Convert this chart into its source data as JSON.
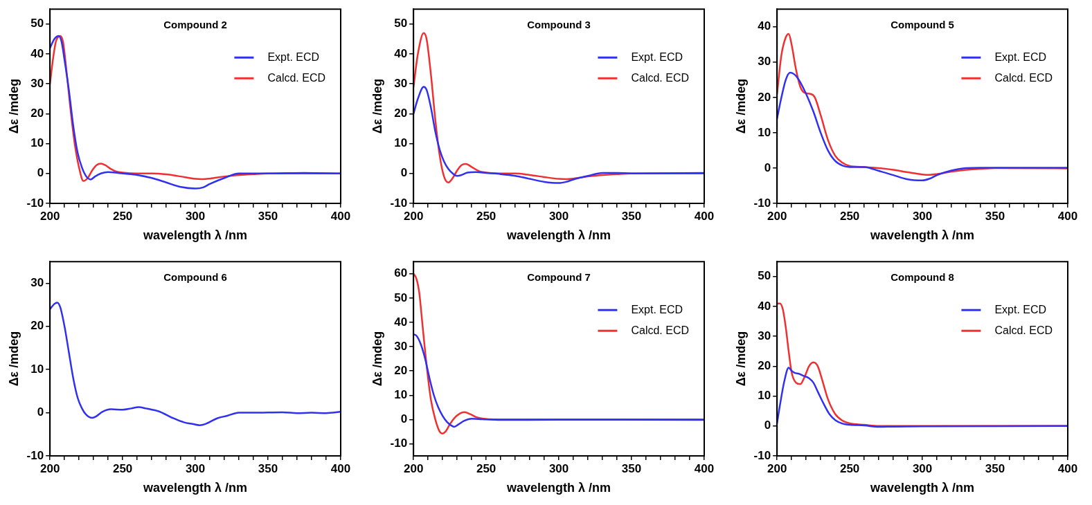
{
  "chart_data": [
    {
      "type": "line",
      "title": "Compound 2",
      "xlabel": "wavelength λ /nm",
      "ylabel": "Δε /mdeg",
      "xlim": [
        200,
        400
      ],
      "xticks": [
        200,
        {
          "value": 210,
          "label": null
        },
        {
          "value": 220,
          "label": null
        },
        {
          "value": 230,
          "label": null
        },
        {
          "value": 240,
          "label": null
        },
        250,
        {
          "value": 260,
          "label": null
        },
        {
          "value": 270,
          "label": null
        },
        {
          "value": 280,
          "label": null
        },
        {
          "value": 290,
          "label": null
        },
        300,
        {
          "value": 310,
          "label": null
        },
        {
          "value": 320,
          "label": null
        },
        {
          "value": 330,
          "label": null
        },
        {
          "value": 340,
          "label": null
        },
        350,
        {
          "value": 360,
          "label": null
        },
        {
          "value": 370,
          "label": null
        },
        {
          "value": 380,
          "label": null
        },
        {
          "value": 390,
          "label": null
        },
        400
      ],
      "ylim": [
        -10,
        55
      ],
      "yticks": [
        -10,
        0,
        10,
        20,
        30,
        40,
        50
      ],
      "legend": "top right",
      "marker": "none",
      "line_style": "solid",
      "series": [
        {
          "name": "Expt. ECD",
          "color": "#3030f0",
          "x": [
            200,
            203,
            206,
            208,
            210,
            213,
            216,
            219,
            222,
            225,
            228,
            231,
            235,
            240,
            245,
            250,
            260,
            270,
            280,
            290,
            300,
            305,
            310,
            320,
            330,
            340,
            350,
            375,
            400
          ],
          "values": [
            42,
            45,
            46,
            44,
            38,
            28,
            16,
            7,
            2,
            -1,
            -2,
            -1,
            0,
            0.5,
            0.3,
            0,
            -0.5,
            -1.5,
            -3,
            -4.5,
            -5,
            -4.7,
            -3.5,
            -1.5,
            0,
            0,
            0,
            0.2,
            0
          ]
        },
        {
          "name": "Calcd. ECD",
          "color": "#f03030",
          "x": [
            200,
            202,
            204,
            207,
            209,
            211,
            214,
            217,
            220,
            223,
            226,
            229,
            232,
            235,
            238,
            242,
            246,
            250,
            260,
            270,
            280,
            290,
            300,
            305,
            310,
            320,
            330,
            340,
            350,
            400
          ],
          "values": [
            30,
            38,
            44,
            46,
            44,
            36,
            22,
            10,
            2,
            -2.5,
            -1.5,
            1,
            2.8,
            3.3,
            2.8,
            1.5,
            0.6,
            0.3,
            0,
            0,
            -0.3,
            -1,
            -1.8,
            -1.9,
            -1.7,
            -1,
            -0.5,
            -0.2,
            0,
            0
          ]
        }
      ]
    },
    {
      "type": "line",
      "title": "Compound 3",
      "xlabel": "wavelength λ /nm",
      "ylabel": "Δε /mdeg",
      "xlim": [
        200,
        400
      ],
      "xticks": [
        200,
        {
          "value": 210,
          "label": null
        },
        {
          "value": 220,
          "label": null
        },
        {
          "value": 230,
          "label": null
        },
        {
          "value": 240,
          "label": null
        },
        250,
        {
          "value": 260,
          "label": null
        },
        {
          "value": 270,
          "label": null
        },
        {
          "value": 280,
          "label": null
        },
        {
          "value": 290,
          "label": null
        },
        300,
        {
          "value": 310,
          "label": null
        },
        {
          "value": 320,
          "label": null
        },
        {
          "value": 330,
          "label": null
        },
        {
          "value": 340,
          "label": null
        },
        350,
        {
          "value": 360,
          "label": null
        },
        {
          "value": 370,
          "label": null
        },
        {
          "value": 380,
          "label": null
        },
        {
          "value": 390,
          "label": null
        },
        400
      ],
      "ylim": [
        -10,
        55
      ],
      "yticks": [
        -10,
        0,
        10,
        20,
        30,
        40,
        50
      ],
      "legend": "top right",
      "marker": "none",
      "line_style": "solid",
      "series": [
        {
          "name": "Expt. ECD",
          "color": "#3030f0",
          "x": [
            200,
            203,
            207,
            209,
            212,
            215,
            218,
            221,
            224,
            227,
            230,
            233,
            237,
            243,
            250,
            260,
            270,
            280,
            290,
            300,
            305,
            310,
            320,
            330,
            340,
            350,
            400
          ],
          "values": [
            20,
            25,
            29,
            28,
            22,
            14,
            8,
            4,
            1.5,
            0,
            -0.8,
            -0.5,
            0.3,
            0.5,
            0.2,
            -0.2,
            -0.8,
            -1.8,
            -2.8,
            -3.2,
            -2.8,
            -2,
            -0.8,
            0.2,
            0.2,
            0,
            0.2
          ]
        },
        {
          "name": "Calcd. ECD",
          "color": "#f03030",
          "x": [
            200,
            203,
            207,
            209,
            212,
            215,
            218,
            221,
            224,
            227,
            230,
            233,
            236,
            240,
            245,
            250,
            260,
            270,
            280,
            290,
            300,
            305,
            310,
            320,
            330,
            340,
            350,
            400
          ],
          "values": [
            29,
            40,
            47,
            45,
            33,
            18,
            6,
            -1,
            -3,
            -1.5,
            1,
            2.8,
            3.2,
            2.2,
            0.8,
            0.3,
            0,
            0,
            -0.5,
            -1.2,
            -1.8,
            -1.9,
            -1.7,
            -1,
            -0.5,
            -0.2,
            0,
            0
          ]
        }
      ]
    },
    {
      "type": "line",
      "title": "Compound 5",
      "xlabel": "wavelength λ /nm",
      "ylabel": "Δε /mdeg",
      "xlim": [
        200,
        400
      ],
      "xticks": [
        200,
        {
          "value": 210,
          "label": null
        },
        {
          "value": 220,
          "label": null
        },
        {
          "value": 230,
          "label": null
        },
        {
          "value": 240,
          "label": null
        },
        250,
        {
          "value": 260,
          "label": null
        },
        {
          "value": 270,
          "label": null
        },
        {
          "value": 280,
          "label": null
        },
        {
          "value": 290,
          "label": null
        },
        300,
        {
          "value": 310,
          "label": null
        },
        {
          "value": 320,
          "label": null
        },
        {
          "value": 330,
          "label": null
        },
        {
          "value": 340,
          "label": null
        },
        350,
        {
          "value": 360,
          "label": null
        },
        {
          "value": 370,
          "label": null
        },
        {
          "value": 380,
          "label": null
        },
        {
          "value": 390,
          "label": null
        },
        400
      ],
      "ylim": [
        -10,
        45
      ],
      "yticks": [
        -10,
        0,
        10,
        20,
        30,
        40
      ],
      "legend": "top right",
      "marker": "none",
      "line_style": "solid",
      "series": [
        {
          "name": "Expt. ECD",
          "color": "#3030f0",
          "x": [
            200,
            203,
            206,
            209,
            212,
            215,
            220,
            225,
            230,
            235,
            240,
            245,
            250,
            260,
            270,
            280,
            290,
            300,
            305,
            310,
            320,
            330,
            340,
            400
          ],
          "values": [
            14,
            20,
            25,
            27,
            26.5,
            25,
            21,
            16,
            10,
            5,
            2,
            0.7,
            0.3,
            0.3,
            -0.8,
            -2,
            -3.2,
            -3.5,
            -3,
            -2,
            -0.7,
            0,
            0.1,
            0.1
          ]
        },
        {
          "name": "Calcd. ECD",
          "color": "#f03030",
          "x": [
            200,
            203,
            206,
            208,
            210,
            213,
            216,
            219,
            223,
            226,
            230,
            235,
            240,
            245,
            250,
            260,
            270,
            280,
            290,
            300,
            305,
            310,
            320,
            330,
            340,
            350,
            400
          ],
          "values": [
            21,
            32,
            37,
            38,
            35,
            28,
            23,
            21.3,
            21,
            20,
            15,
            8,
            3.5,
            1.5,
            0.6,
            0.3,
            0,
            -0.5,
            -1.2,
            -1.8,
            -1.9,
            -1.7,
            -1,
            -0.5,
            -0.2,
            0,
            -0.1
          ]
        }
      ]
    },
    {
      "type": "line",
      "title": "Compound 6",
      "xlabel": "wavelength λ /nm",
      "ylabel": "Δε /mdeg",
      "xlim": [
        200,
        400
      ],
      "xticks": [
        200,
        {
          "value": 210,
          "label": null
        },
        {
          "value": 220,
          "label": null
        },
        {
          "value": 230,
          "label": null
        },
        {
          "value": 240,
          "label": null
        },
        250,
        {
          "value": 260,
          "label": null
        },
        {
          "value": 270,
          "label": null
        },
        {
          "value": 280,
          "label": null
        },
        {
          "value": 290,
          "label": null
        },
        300,
        {
          "value": 310,
          "label": null
        },
        {
          "value": 320,
          "label": null
        },
        {
          "value": 330,
          "label": null
        },
        {
          "value": 340,
          "label": null
        },
        350,
        {
          "value": 360,
          "label": null
        },
        {
          "value": 370,
          "label": null
        },
        {
          "value": 380,
          "label": null
        },
        {
          "value": 390,
          "label": null
        },
        400
      ],
      "ylim": [
        -10,
        35
      ],
      "yticks": [
        -10,
        0,
        10,
        20,
        30
      ],
      "marker": "none",
      "line_style": "solid",
      "series": [
        {
          "color": "#3030f0",
          "x": [
            200,
            203,
            205,
            207,
            210,
            213,
            216,
            219,
            222,
            225,
            229,
            232,
            236,
            242,
            250,
            256,
            261,
            266,
            275,
            285,
            292,
            298,
            303,
            307,
            315,
            322,
            330,
            340,
            360,
            370,
            380,
            390,
            400
          ],
          "values": [
            24,
            25.2,
            25.5,
            24.5,
            20,
            14,
            8,
            3.5,
            1,
            -0.5,
            -1.2,
            -0.8,
            0.2,
            0.8,
            0.7,
            1,
            1.3,
            1,
            0.3,
            -1.3,
            -2.2,
            -2.6,
            -2.9,
            -2.6,
            -1.3,
            -0.7,
            0,
            0,
            0.1,
            -0.1,
            0,
            -0.1,
            0.2
          ]
        }
      ]
    },
    {
      "type": "line",
      "title": "Compound 7",
      "xlabel": "wavelength λ /nm",
      "ylabel": "Δε /mdeg",
      "xlim": [
        200,
        400
      ],
      "xticks": [
        200,
        {
          "value": 210,
          "label": null
        },
        {
          "value": 220,
          "label": null
        },
        {
          "value": 230,
          "label": null
        },
        {
          "value": 240,
          "label": null
        },
        250,
        {
          "value": 260,
          "label": null
        },
        {
          "value": 270,
          "label": null
        },
        {
          "value": 280,
          "label": null
        },
        {
          "value": 290,
          "label": null
        },
        300,
        {
          "value": 310,
          "label": null
        },
        {
          "value": 320,
          "label": null
        },
        {
          "value": 330,
          "label": null
        },
        {
          "value": 340,
          "label": null
        },
        350,
        {
          "value": 360,
          "label": null
        },
        {
          "value": 370,
          "label": null
        },
        {
          "value": 380,
          "label": null
        },
        {
          "value": 390,
          "label": null
        },
        400
      ],
      "ylim": [
        -15,
        65
      ],
      "yticks": [
        -10,
        0,
        10,
        20,
        30,
        40,
        50,
        60
      ],
      "legend": "top right",
      "marker": "none",
      "line_style": "solid",
      "series": [
        {
          "name": "Expt. ECD",
          "color": "#3030f0",
          "x": [
            200,
            202,
            205,
            208,
            211,
            214,
            217,
            220,
            223,
            226,
            228,
            231,
            235,
            240,
            245,
            250,
            260,
            300,
            400
          ],
          "values": [
            35,
            34.5,
            31,
            25,
            17,
            10,
            5,
            1.5,
            -1,
            -2.5,
            -3,
            -2,
            -0.5,
            0.3,
            0.2,
            0,
            -0.2,
            -0.1,
            -0.2
          ]
        },
        {
          "name": "Calcd. ECD",
          "color": "#f03030",
          "x": [
            200,
            202,
            204,
            206,
            208,
            210,
            212,
            215,
            218,
            220,
            222,
            225,
            228,
            232,
            235,
            239,
            243,
            248,
            255,
            400
          ],
          "values": [
            60,
            58,
            52,
            40,
            28,
            17,
            8,
            0,
            -5,
            -5.8,
            -5,
            -2,
            0.5,
            2.5,
            3,
            2.2,
            1,
            0.3,
            0,
            0
          ]
        }
      ]
    },
    {
      "type": "line",
      "title": "Compound 8",
      "xlabel": "wavelength λ /nm",
      "ylabel": "Δε /mdeg",
      "xlim": [
        200,
        400
      ],
      "xticks": [
        200,
        {
          "value": 210,
          "label": null
        },
        {
          "value": 220,
          "label": null
        },
        {
          "value": 230,
          "label": null
        },
        {
          "value": 240,
          "label": null
        },
        250,
        {
          "value": 260,
          "label": null
        },
        {
          "value": 270,
          "label": null
        },
        {
          "value": 280,
          "label": null
        },
        {
          "value": 290,
          "label": null
        },
        300,
        {
          "value": 310,
          "label": null
        },
        {
          "value": 320,
          "label": null
        },
        {
          "value": 330,
          "label": null
        },
        {
          "value": 340,
          "label": null
        },
        350,
        {
          "value": 360,
          "label": null
        },
        {
          "value": 370,
          "label": null
        },
        {
          "value": 380,
          "label": null
        },
        {
          "value": 390,
          "label": null
        },
        400
      ],
      "ylim": [
        -10,
        55
      ],
      "yticks": [
        -10,
        0,
        10,
        20,
        30,
        40,
        50
      ],
      "legend": "top right",
      "marker": "none",
      "line_style": "solid",
      "series": [
        {
          "name": "Expt. ECD",
          "color": "#3030f0",
          "x": [
            200,
            202,
            205,
            208,
            210,
            212,
            215,
            218,
            222,
            225,
            228,
            232,
            236,
            240,
            245,
            250,
            260,
            270,
            280,
            300,
            400
          ],
          "values": [
            1,
            7,
            15,
            19.5,
            18.5,
            17.8,
            17.5,
            16.8,
            16,
            14.5,
            11.5,
            7.5,
            4,
            2,
            0.8,
            0.4,
            0.2,
            -0.3,
            -0.2,
            -0.1,
            0
          ]
        },
        {
          "name": "Calcd. ECD",
          "color": "#f03030",
          "x": [
            200,
            202,
            204,
            206,
            208,
            210,
            213,
            216,
            219,
            222,
            225,
            228,
            231,
            235,
            240,
            245,
            250,
            260,
            270,
            300,
            400
          ],
          "values": [
            41,
            41,
            39,
            33,
            25,
            18,
            14.5,
            14,
            16.5,
            20,
            21.3,
            20,
            15.5,
            9,
            4,
            1.8,
            0.9,
            0.4,
            0,
            0,
            0
          ]
        }
      ]
    }
  ]
}
